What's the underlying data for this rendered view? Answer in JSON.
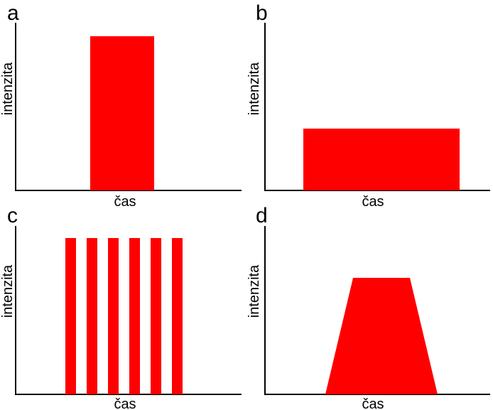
{
  "figure": {
    "pulse_color": "#ff0000",
    "axis_color": "#000000",
    "background": "#ffffff"
  },
  "panels": [
    {
      "id": "a",
      "letter": "a",
      "xlabel": "čas",
      "ylabel": "intenzita",
      "description": "single tall rectangular pulse"
    },
    {
      "id": "b",
      "letter": "b",
      "xlabel": "čas",
      "ylabel": "intenzita",
      "description": "single wide low rectangular pulse"
    },
    {
      "id": "c",
      "letter": "c",
      "xlabel": "čas",
      "ylabel": "intenzita",
      "pulse_count": 6
    },
    {
      "id": "d",
      "letter": "d",
      "xlabel": "čas",
      "ylabel": "intenzita",
      "description": "trapezoidal pulse"
    }
  ]
}
